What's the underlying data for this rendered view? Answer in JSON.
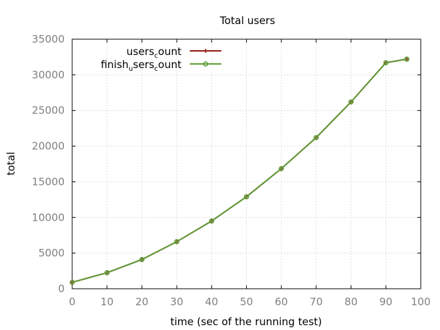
{
  "chart_data": {
    "type": "line",
    "title": "Total users",
    "xlabel": "time (sec of the running test)",
    "ylabel": "total",
    "xlim": [
      0,
      100
    ],
    "ylim": [
      0,
      35000
    ],
    "xticks": [
      "0",
      "10",
      "20",
      "30",
      "40",
      "50",
      "60",
      "70",
      "80",
      "90",
      "100"
    ],
    "yticks": [
      "0",
      "5000",
      "10000",
      "15000",
      "20000",
      "25000",
      "30000",
      "35000"
    ],
    "grid": true,
    "legend_position": "top-left",
    "x": [
      0,
      10,
      20,
      30,
      40,
      50,
      60,
      70,
      80,
      90,
      96
    ],
    "series": [
      {
        "name": "users_count",
        "legend_main": "users",
        "legend_sub": "c",
        "legend_rest": "ount",
        "color": "#8b1a0e",
        "marker": "plus",
        "values": [
          900,
          2250,
          4100,
          6600,
          9500,
          12900,
          16850,
          21200,
          26200,
          31700,
          32200
        ]
      },
      {
        "name": "finish_users_count",
        "legend_main": "finish",
        "legend_sub": "u",
        "legend_rest": "sers",
        "legend_sub2": "c",
        "legend_rest2": "ount",
        "color": "#5e9c36",
        "marker": "circle",
        "values": [
          900,
          2250,
          4100,
          6600,
          9500,
          12900,
          16850,
          21200,
          26200,
          31700,
          32200
        ]
      }
    ]
  }
}
